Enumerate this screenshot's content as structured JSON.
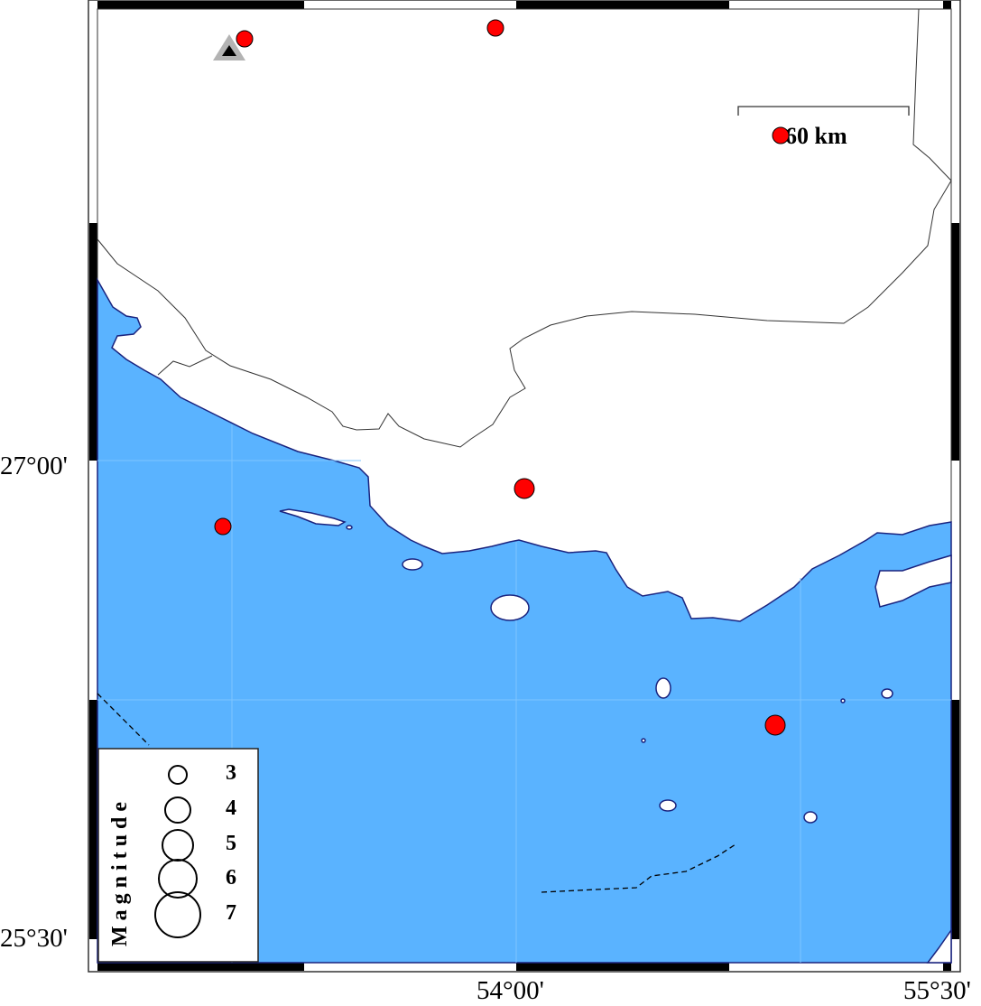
{
  "map": {
    "colors": {
      "sea": "#5ab3ff",
      "land": "#ffffff",
      "coast": "#1a237e",
      "event": "#ff0000",
      "station": "#b3b3b3",
      "station_inner": "#000000",
      "grid": "#7ec6ff"
    },
    "axis_labels": {
      "lat_top": "27°00'",
      "lat_bottom": "25°30'",
      "lon_left": "54°00'",
      "lon_right": "55°30'"
    },
    "scale_bar": {
      "label": "60 km"
    },
    "legend": {
      "title": "Magnitude",
      "entries": [
        "3",
        "4",
        "5",
        "6",
        "7"
      ]
    },
    "icons": {
      "event": "red-circle-earthquake",
      "station": "gray-triangle-seismic-station"
    }
  }
}
